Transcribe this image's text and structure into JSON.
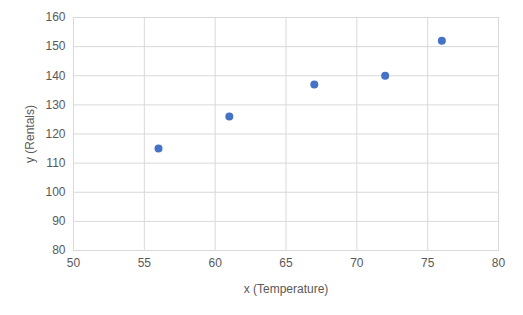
{
  "chart_data": {
    "type": "scatter",
    "xlabel": "x (Temperature)",
    "ylabel": "y (Rentals)",
    "x": [
      56,
      61,
      67,
      72,
      76
    ],
    "values": [
      115,
      126,
      137,
      140,
      152
    ],
    "color": "#4472c4",
    "marker": "circle",
    "xlim": [
      50,
      80
    ],
    "xticks": [
      50,
      55,
      60,
      65,
      70,
      75,
      80
    ],
    "ylim": [
      80,
      160
    ],
    "yticks": [
      80,
      90,
      100,
      110,
      120,
      130,
      140,
      150,
      160
    ],
    "grid": true
  }
}
